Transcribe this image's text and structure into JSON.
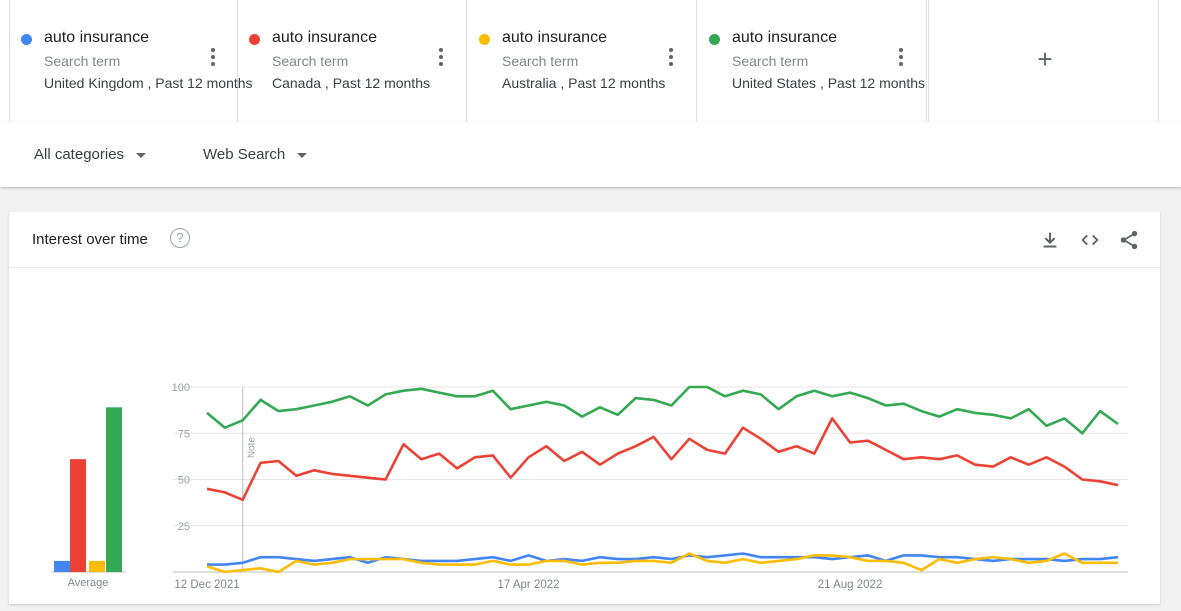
{
  "terms": [
    {
      "term": "auto insurance",
      "kind": "Search term",
      "geo": "United Kingdom , Past 12 months",
      "color": "#4285f4"
    },
    {
      "term": "auto insurance",
      "kind": "Search term",
      "geo": "Canada , Past 12 months",
      "color": "#ea4335"
    },
    {
      "term": "auto insurance",
      "kind": "Search term",
      "geo": "Australia , Past 12 months",
      "color": "#fbbc04"
    },
    {
      "term": "auto insurance",
      "kind": "Search term",
      "geo": "United States , Past 12 months",
      "color": "#34a853"
    }
  ],
  "add_label": "+",
  "filters": {
    "category": "All categories",
    "search_type": "Web Search"
  },
  "card": {
    "title": "Interest over time",
    "help": "?",
    "icons": [
      "download-icon",
      "embed-code-icon",
      "share-icon"
    ]
  },
  "chart_data": {
    "type": "line",
    "yticks": [
      100,
      75,
      50,
      25
    ],
    "ylim": [
      0,
      100
    ],
    "xtick_labels": [
      "12 Dec 2021",
      "17 Apr 2022",
      "21 Aug 2022"
    ],
    "xtick_index": [
      0,
      18,
      36
    ],
    "note_label": "Note",
    "note_index": 2,
    "average_label": "Average",
    "averages": [
      6,
      61,
      6,
      89
    ],
    "series": [
      {
        "color": "#34a853",
        "values": [
          86,
          78,
          82,
          93,
          87,
          88,
          90,
          92,
          95,
          90,
          96,
          98,
          99,
          97,
          95,
          95,
          98,
          88,
          90,
          92,
          90,
          84,
          89,
          85,
          94,
          93,
          90,
          100,
          100,
          95,
          98,
          96,
          88,
          95,
          98,
          95,
          97,
          94,
          90,
          91,
          87,
          84,
          88,
          86,
          85,
          83,
          88,
          79,
          83,
          75,
          87,
          80
        ]
      },
      {
        "color": "#ea4335",
        "values": [
          45,
          43,
          39,
          59,
          60,
          52,
          55,
          53,
          52,
          51,
          50,
          69,
          61,
          64,
          56,
          62,
          63,
          51,
          62,
          68,
          60,
          65,
          58,
          64,
          68,
          73,
          61,
          72,
          66,
          64,
          78,
          72,
          65,
          68,
          64,
          83,
          70,
          71,
          66,
          61,
          62,
          61,
          63,
          58,
          57,
          62,
          58,
          62,
          57,
          50,
          49,
          47
        ]
      },
      {
        "color": "#4285f4",
        "values": [
          4,
          4,
          5,
          8,
          8,
          7,
          6,
          7,
          8,
          5,
          8,
          7,
          6,
          6,
          6,
          7,
          8,
          6,
          9,
          6,
          7,
          6,
          8,
          7,
          7,
          8,
          7,
          9,
          8,
          9,
          10,
          8,
          8,
          8,
          8,
          7,
          8,
          9,
          6,
          9,
          9,
          8,
          8,
          7,
          6,
          7,
          7,
          7,
          6,
          7,
          7,
          8
        ]
      },
      {
        "color": "#fbbc04",
        "values": [
          3,
          0,
          1,
          2,
          0,
          6,
          4,
          5,
          7,
          7,
          7,
          7,
          5,
          4,
          4,
          4,
          6,
          4,
          4,
          6,
          6,
          4,
          5,
          5,
          6,
          6,
          5,
          10,
          6,
          5,
          7,
          5,
          6,
          7,
          9,
          9,
          8,
          6,
          6,
          5,
          1,
          7,
          5,
          7,
          8,
          7,
          5,
          6,
          10,
          5,
          5,
          5
        ]
      }
    ]
  }
}
